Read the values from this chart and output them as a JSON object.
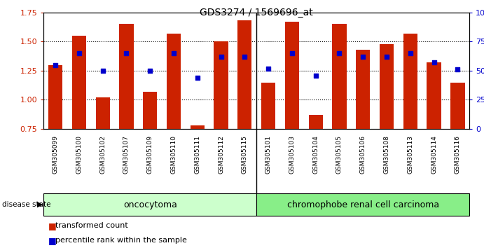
{
  "title": "GDS3274 / 1569696_at",
  "samples": [
    "GSM305099",
    "GSM305100",
    "GSM305102",
    "GSM305107",
    "GSM305109",
    "GSM305110",
    "GSM305111",
    "GSM305112",
    "GSM305115",
    "GSM305101",
    "GSM305103",
    "GSM305104",
    "GSM305105",
    "GSM305106",
    "GSM305108",
    "GSM305113",
    "GSM305114",
    "GSM305116"
  ],
  "red_values": [
    1.3,
    1.55,
    1.02,
    1.65,
    1.07,
    1.57,
    0.78,
    1.5,
    1.68,
    1.15,
    1.67,
    0.87,
    1.65,
    1.43,
    1.48,
    1.57,
    1.32,
    1.15
  ],
  "blue_pct": [
    55,
    65,
    50,
    65,
    50,
    65,
    44,
    62,
    62,
    52,
    65,
    46,
    65,
    62,
    62,
    65,
    57,
    51
  ],
  "oncocytoma_count": 9,
  "chromophobe_count": 9,
  "group1_label": "oncocytoma",
  "group2_label": "chromophobe renal cell carcinoma",
  "group1_color": "#ccffcc",
  "group2_color": "#88ee88",
  "ylim_left": [
    0.75,
    1.75
  ],
  "ylim_right": [
    0,
    100
  ],
  "yticks_left": [
    0.75,
    1.0,
    1.25,
    1.5,
    1.75
  ],
  "yticks_right": [
    0,
    25,
    50,
    75,
    100
  ],
  "bar_color": "#cc2200",
  "dot_color": "#0000cc",
  "baseline": 0.75,
  "bar_width": 0.6,
  "label_color_left": "#cc2200",
  "label_color_right": "#0000cc",
  "tick_bg_color": "#cccccc"
}
